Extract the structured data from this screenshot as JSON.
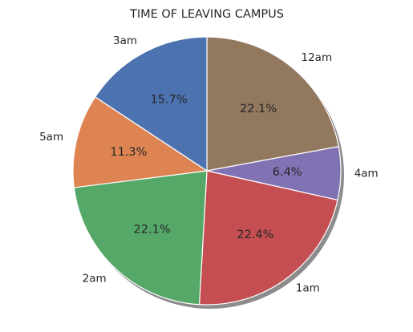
{
  "chart_data": {
    "type": "pie",
    "title": "TIME OF LEAVING CAMPUS",
    "start_angle_deg": 90,
    "direction": "clockwise",
    "shadow": true,
    "slices": [
      {
        "label": "12am",
        "value": 22.1,
        "pct_label": "22.1%",
        "color": "#937860"
      },
      {
        "label": "4am",
        "value": 6.4,
        "pct_label": "6.4%",
        "color": "#8172B3"
      },
      {
        "label": "1am",
        "value": 22.4,
        "pct_label": "22.4%",
        "color": "#C44E52"
      },
      {
        "label": "2am",
        "value": 22.1,
        "pct_label": "22.1%",
        "color": "#55A868"
      },
      {
        "label": "5am",
        "value": 11.3,
        "pct_label": "11.3%",
        "color": "#DD8452"
      },
      {
        "label": "3am",
        "value": 15.7,
        "pct_label": "15.7%",
        "color": "#4C72B0"
      }
    ]
  }
}
